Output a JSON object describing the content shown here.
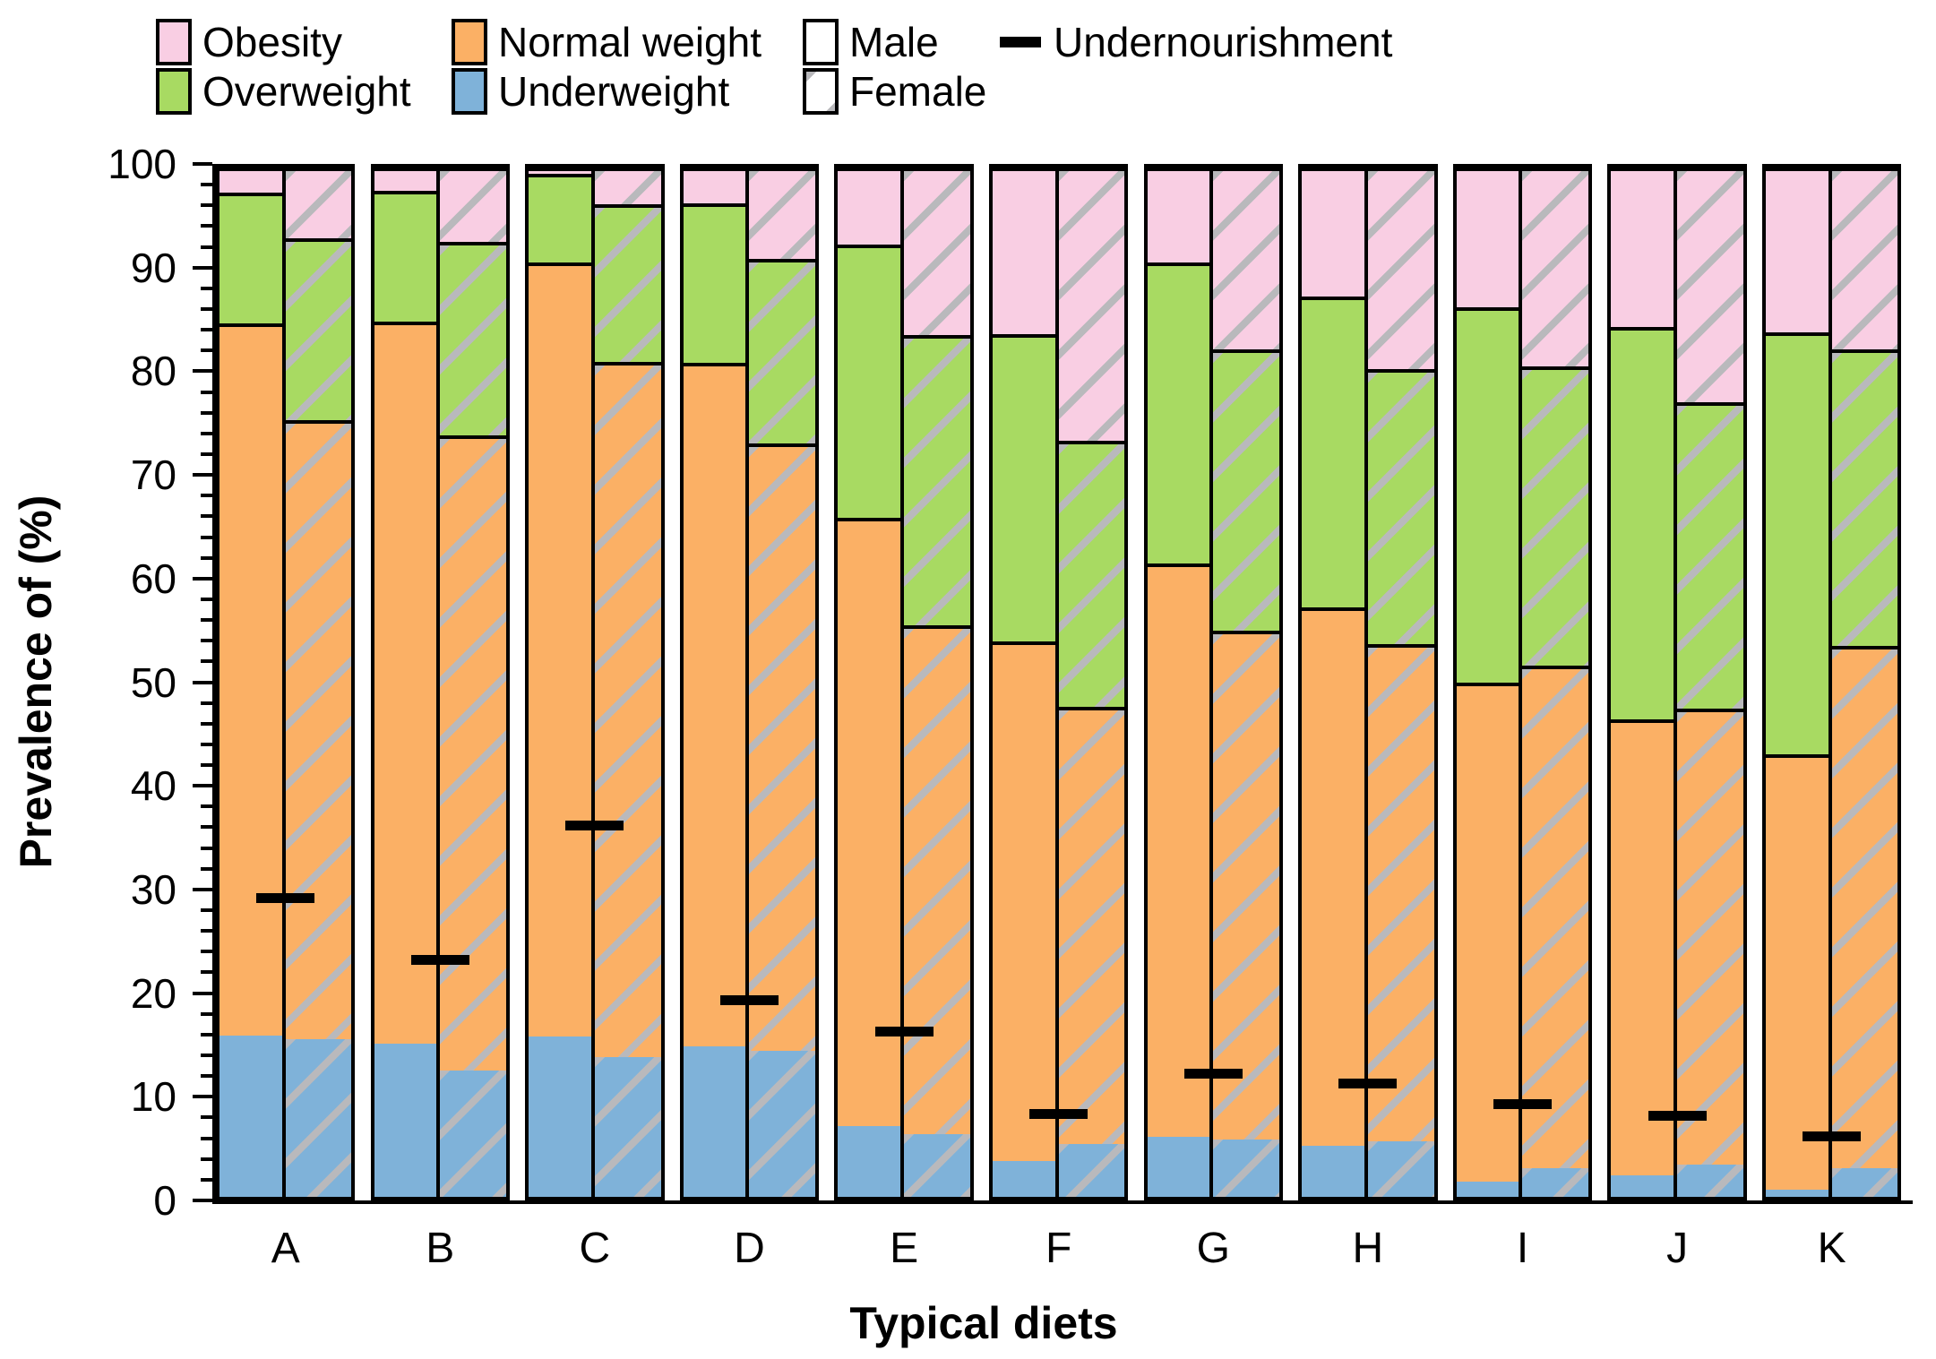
{
  "chart_data": {
    "type": "bar",
    "stacked": true,
    "orientation": "vertical",
    "title": "",
    "xlabel": "Typical diets",
    "ylabel": "Prevalence of (%)",
    "ylim": [
      0,
      100
    ],
    "y_ticks": [
      0,
      10,
      20,
      30,
      40,
      50,
      60,
      70,
      80,
      90,
      100
    ],
    "y_minor_tick_step": 2,
    "grid": false,
    "legend_position": "top",
    "segment_order": [
      "underweight",
      "normal_weight",
      "overweight",
      "obesity"
    ],
    "legend": {
      "obesity": "Obesity",
      "overweight": "Overweight",
      "normal_weight": "Normal weight",
      "underweight": "Underweight",
      "male": "Male",
      "female": "Female",
      "undernourishment": "Undernourishment"
    },
    "colors": {
      "obesity": "#F9CEE3",
      "overweight": "#A8DA62",
      "normal_weight": "#FBB065",
      "underweight": "#7FB2D9",
      "male_fill": "#FFFFFF",
      "hatch": "#B9B9BC",
      "marker": "#000000"
    },
    "groups": [
      {
        "label": "A",
        "male": {
          "underweight": 15.7,
          "normal_weight": 69.2,
          "overweight": 12.7,
          "obesity": 2.4
        },
        "female": {
          "underweight": 15.3,
          "normal_weight": 60.2,
          "overweight": 17.6,
          "obesity": 6.9
        },
        "undernourishment": 29.2
      },
      {
        "label": "B",
        "male": {
          "underweight": 14.9,
          "normal_weight": 70.1,
          "overweight": 12.7,
          "obesity": 2.3
        },
        "female": {
          "underweight": 12.3,
          "normal_weight": 61.7,
          "overweight": 18.8,
          "obesity": 7.2
        },
        "undernourishment": 23.2
      },
      {
        "label": "C",
        "male": {
          "underweight": 15.6,
          "normal_weight": 75.2,
          "overweight": 8.6,
          "obesity": 0.6
        },
        "female": {
          "underweight": 13.6,
          "normal_weight": 67.5,
          "overweight": 15.3,
          "obesity": 3.6
        },
        "undernourishment": 36.2
      },
      {
        "label": "D",
        "male": {
          "underweight": 14.6,
          "normal_weight": 66.4,
          "overweight": 15.5,
          "obesity": 3.5
        },
        "female": {
          "underweight": 14.2,
          "normal_weight": 59.0,
          "overweight": 17.9,
          "obesity": 8.9
        },
        "undernourishment": 19.3
      },
      {
        "label": "E",
        "male": {
          "underweight": 6.9,
          "normal_weight": 59.1,
          "overweight": 26.5,
          "obesity": 7.5
        },
        "female": {
          "underweight": 6.1,
          "normal_weight": 49.4,
          "overweight": 28.2,
          "obesity": 16.3
        },
        "undernourishment": 16.3
      },
      {
        "label": "F",
        "male": {
          "underweight": 3.5,
          "normal_weight": 50.5,
          "overweight": 29.8,
          "obesity": 16.2
        },
        "female": {
          "underweight": 5.1,
          "normal_weight": 42.5,
          "overweight": 25.9,
          "obesity": 26.5
        },
        "undernourishment": 8.3
      },
      {
        "label": "G",
        "male": {
          "underweight": 5.8,
          "normal_weight": 55.7,
          "overweight": 29.3,
          "obesity": 9.2
        },
        "female": {
          "underweight": 5.6,
          "normal_weight": 49.4,
          "overweight": 27.3,
          "obesity": 17.7
        },
        "undernourishment": 12.2
      },
      {
        "label": "H",
        "male": {
          "underweight": 5.0,
          "normal_weight": 52.3,
          "overweight": 30.2,
          "obesity": 12.5
        },
        "female": {
          "underweight": 5.4,
          "normal_weight": 48.3,
          "overweight": 26.7,
          "obesity": 19.6
        },
        "undernourishment": 11.3
      },
      {
        "label": "I",
        "male": {
          "underweight": 1.5,
          "normal_weight": 48.5,
          "overweight": 36.4,
          "obesity": 13.6
        },
        "female": {
          "underweight": 2.8,
          "normal_weight": 48.8,
          "overweight": 29.1,
          "obesity": 19.3
        },
        "undernourishment": 9.3
      },
      {
        "label": "J",
        "male": {
          "underweight": 2.1,
          "normal_weight": 44.3,
          "overweight": 38.1,
          "obesity": 15.5
        },
        "female": {
          "underweight": 3.1,
          "normal_weight": 44.3,
          "overweight": 29.8,
          "obesity": 22.8
        },
        "undernourishment": 8.2
      },
      {
        "label": "K",
        "male": {
          "underweight": 0.7,
          "normal_weight": 42.3,
          "overweight": 41.0,
          "obesity": 16.0
        },
        "female": {
          "underweight": 2.8,
          "normal_weight": 50.7,
          "overweight": 28.8,
          "obesity": 17.7
        },
        "undernourishment": 6.2
      }
    ]
  }
}
